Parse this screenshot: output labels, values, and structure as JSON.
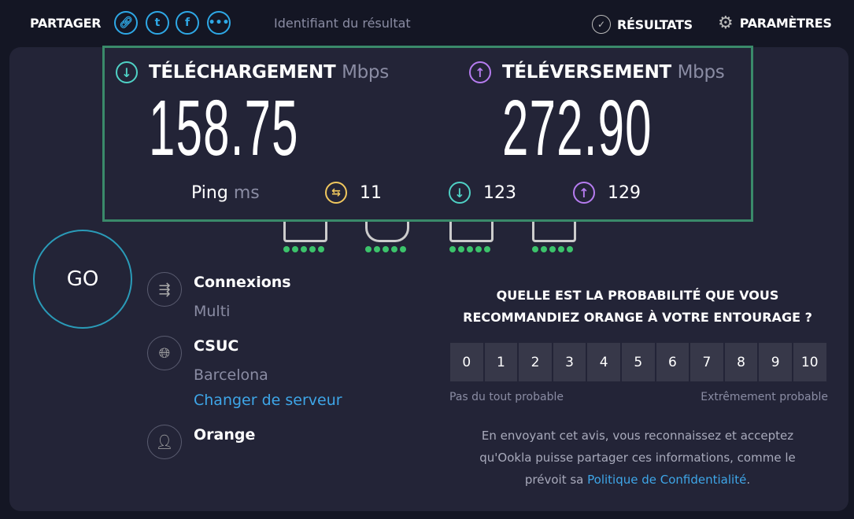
{
  "header": {
    "share_label": "PARTAGER",
    "share_icons": [
      "link-icon",
      "twitter-icon",
      "facebook-icon",
      "more-icon"
    ],
    "result_id_label": "Identifiant du résultat",
    "results_label": "RÉSULTATS",
    "settings_label": "PARAMÈTRES"
  },
  "speeds": {
    "download": {
      "label": "TÉLÉCHARGEMENT",
      "unit": "Mbps",
      "value": "158.75",
      "color": "#4fd1c5"
    },
    "upload": {
      "label": "TÉLÉVERSEMENT",
      "unit": "Mbps",
      "value": "272.90",
      "color": "#b67cf0"
    }
  },
  "ping": {
    "label": "Ping",
    "unit": "ms",
    "idle": "11",
    "download": "123",
    "upload": "129",
    "idle_color": "#f0c75e"
  },
  "devices": [
    {
      "icon": "browsing-icon",
      "rating": 5
    },
    {
      "icon": "gaming-icon",
      "rating": 5
    },
    {
      "icon": "streaming-icon",
      "rating": 5
    },
    {
      "icon": "video-call-icon",
      "rating": 5
    }
  ],
  "go_label": "GO",
  "info": {
    "connections_label": "Connexions",
    "connections_value": "Multi",
    "server_name": "CSUC",
    "server_location": "Barcelona",
    "change_server": "Changer de serveur",
    "isp": "Orange"
  },
  "survey": {
    "question_line1": "QUELLE EST LA PROBABILITÉ QUE VOUS",
    "question_line2": "RECOMMANDIEZ ORANGE À VOTRE ENTOURAGE ?",
    "scale": [
      "0",
      "1",
      "2",
      "3",
      "4",
      "5",
      "6",
      "7",
      "8",
      "9",
      "10"
    ],
    "low_label": "Pas du tout probable",
    "high_label": "Extrêmement probable",
    "legal_1": "En envoyant cet avis, vous reconnaissez et acceptez",
    "legal_2": "qu'Ookla puisse partager ces informations, comme le",
    "legal_3": "prévoit sa",
    "privacy_link": "Politique de Confidentialité",
    "legal_end": "."
  }
}
